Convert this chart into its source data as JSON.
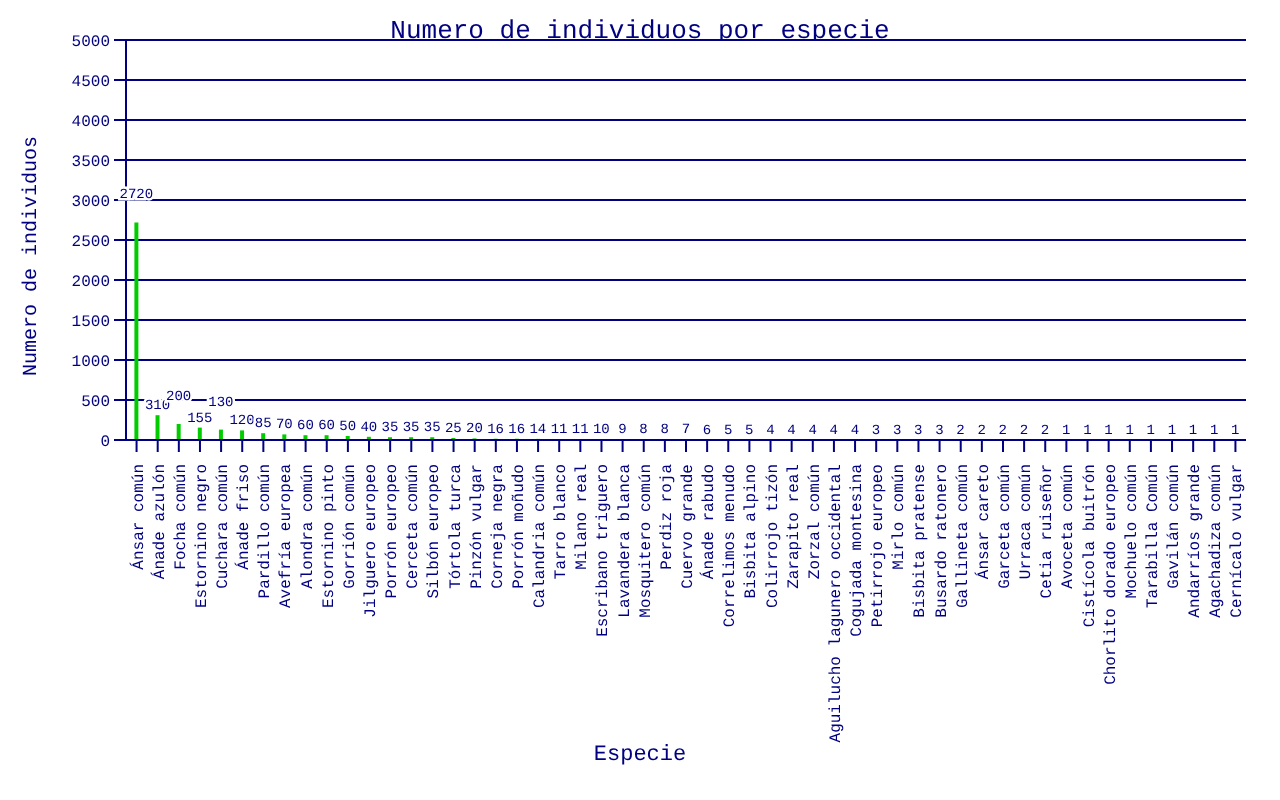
{
  "chart_data": {
    "type": "bar",
    "title": "Numero de individuos por especie",
    "xlabel": "Especie",
    "ylabel": "Numero de individuos",
    "categories": [
      "Ánsar común",
      "Ánade azulón",
      "Focha común",
      "Estornino negro",
      "Cuchara común",
      "Ánade friso",
      "Pardillo común",
      "Avefría europea",
      "Alondra común",
      "Estornino pinto",
      "Gorrión común",
      "Jilguero europeo",
      "Porrón europeo",
      "Cerceta común",
      "Silbón europeo",
      "Tórtola turca",
      "Pinzón vulgar",
      "Corneja negra",
      "Porrón moñudo",
      "Calandria común",
      "Tarro blanco",
      "Milano real",
      "Escribano triguero",
      "Lavandera blanca",
      "Mosquitero común",
      "Perdiz roja",
      "Cuervo grande",
      "Ánade rabudo",
      "Correlimos menudo",
      "Bisbita alpino",
      "Colirrojo tizón",
      "Zarapito real",
      "Zorzal común",
      "Aguilucho lagunero occidental",
      "Cogujada montesina",
      "Petirrojo europeo",
      "Mirlo común",
      "Bisbita pratense",
      "Busardo ratonero",
      "Gallineta común",
      "Ánsar careto",
      "Garceta común",
      "Urraca común",
      "Cetia ruiseñor",
      "Avoceta común",
      "Cistícola buitrón",
      "Chorlito dorado europeo",
      "Mochuelo común",
      "Tarabilla Común",
      "Gavilán común",
      "Andarríos grande",
      "Agachadiza común",
      "Cernícalo vulgar"
    ],
    "values": [
      2720,
      310,
      200,
      155,
      130,
      120,
      85,
      70,
      60,
      60,
      50,
      40,
      35,
      35,
      35,
      25,
      20,
      16,
      16,
      14,
      11,
      11,
      10,
      9,
      8,
      8,
      7,
      6,
      5,
      5,
      4,
      4,
      4,
      4,
      4,
      3,
      3,
      3,
      3,
      2,
      2,
      2,
      2,
      2,
      1,
      1,
      1,
      1,
      1,
      1,
      1,
      1,
      1
    ],
    "color": "#00cc00",
    "ylim": [
      0,
      5000
    ],
    "yticks": [
      0,
      500,
      1000,
      1500,
      2000,
      2500,
      3000,
      3500,
      4000,
      4500,
      5000
    ],
    "grid": "y",
    "data_labels": true
  }
}
